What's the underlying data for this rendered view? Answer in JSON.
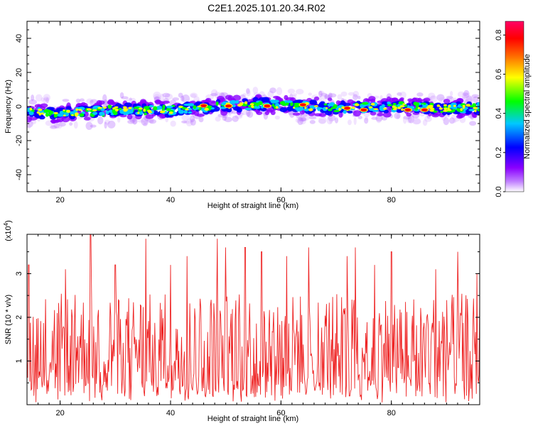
{
  "title": "C2E1.2025.101.20.34.R02",
  "chart_data": [
    {
      "type": "heatmap",
      "title": "C2E1.2025.101.20.34.R02",
      "xlabel": "Height of straight line (km)",
      "ylabel": "Frequency (Hz)",
      "xlim": [
        14,
        96
      ],
      "ylim": [
        -50,
        50
      ],
      "x_ticks": [
        "20",
        "40",
        "60",
        "80"
      ],
      "y_ticks": [
        "-40",
        "-20",
        "0",
        "20",
        "40"
      ],
      "x_tick_values": [
        20,
        40,
        60,
        80
      ],
      "y_tick_values": [
        -40,
        -20,
        0,
        20,
        40
      ],
      "colorbar": {
        "label": "Normalized spectral amplitude",
        "range": [
          0,
          0.87
        ],
        "tick_values": [
          0.0,
          0.2,
          0.4,
          0.6,
          0.8
        ],
        "ticks": [
          "0.0",
          "0.2",
          "0.4",
          "0.6",
          "0.8"
        ],
        "colormap": [
          "#ffffff",
          "#8a00ff",
          "#0000ff",
          "#00c8ff",
          "#00ff00",
          "#ffff00",
          "#ff6600",
          "#ff0000",
          "#ff0066"
        ]
      },
      "band": {
        "center_profile": [
          [
            14,
            -3
          ],
          [
            20,
            -4
          ],
          [
            30,
            -2
          ],
          [
            40,
            -2
          ],
          [
            48,
            0
          ],
          [
            55,
            1
          ],
          [
            60,
            1
          ],
          [
            65,
            0
          ],
          [
            70,
            -1
          ],
          [
            80,
            0
          ],
          [
            90,
            -1
          ],
          [
            96,
            -1
          ]
        ],
        "halfwidth_hz": 3,
        "halo_halfwidth_hz": 9,
        "hotspots": [
          [
            46,
            0.5
          ],
          [
            50.5,
            0.3
          ],
          [
            57.5,
            0.3
          ],
          [
            64,
            1
          ],
          [
            72,
            -1
          ],
          [
            75,
            -2
          ],
          [
            83,
            -2
          ],
          [
            86,
            -2
          ]
        ]
      },
      "grid": false
    },
    {
      "type": "line",
      "xlabel": "Height of straight line (km)",
      "ylabel": "SNR (10 * v/v)",
      "y_multiplier": "(x10^4)",
      "xlim": [
        14,
        96
      ],
      "ylim": [
        0,
        3.9
      ],
      "x_ticks": [
        "20",
        "40",
        "60",
        "80"
      ],
      "y_ticks": [
        "1",
        "2",
        "3"
      ],
      "x_tick_values": [
        20,
        40,
        60,
        80
      ],
      "y_tick_values": [
        1,
        2,
        3
      ],
      "color": "#ee2222",
      "samples": 660,
      "peaks": [
        [
          14.3,
          3.2
        ],
        [
          21,
          3.1
        ],
        [
          25.5,
          3.9
        ],
        [
          30,
          3.2
        ],
        [
          35.5,
          3.8
        ],
        [
          40,
          3.2
        ],
        [
          43,
          3.4
        ],
        [
          48.5,
          3.8
        ],
        [
          50,
          3.6
        ],
        [
          53.5,
          3.6
        ],
        [
          56.5,
          3.5
        ],
        [
          61,
          3.4
        ],
        [
          65,
          3.6
        ],
        [
          72,
          3.4
        ],
        [
          73.5,
          3.6
        ],
        [
          77,
          3.2
        ],
        [
          80,
          3.5
        ],
        [
          88,
          3.1
        ],
        [
          92,
          3.5
        ],
        [
          95.5,
          3.0
        ]
      ],
      "grid": false
    }
  ]
}
